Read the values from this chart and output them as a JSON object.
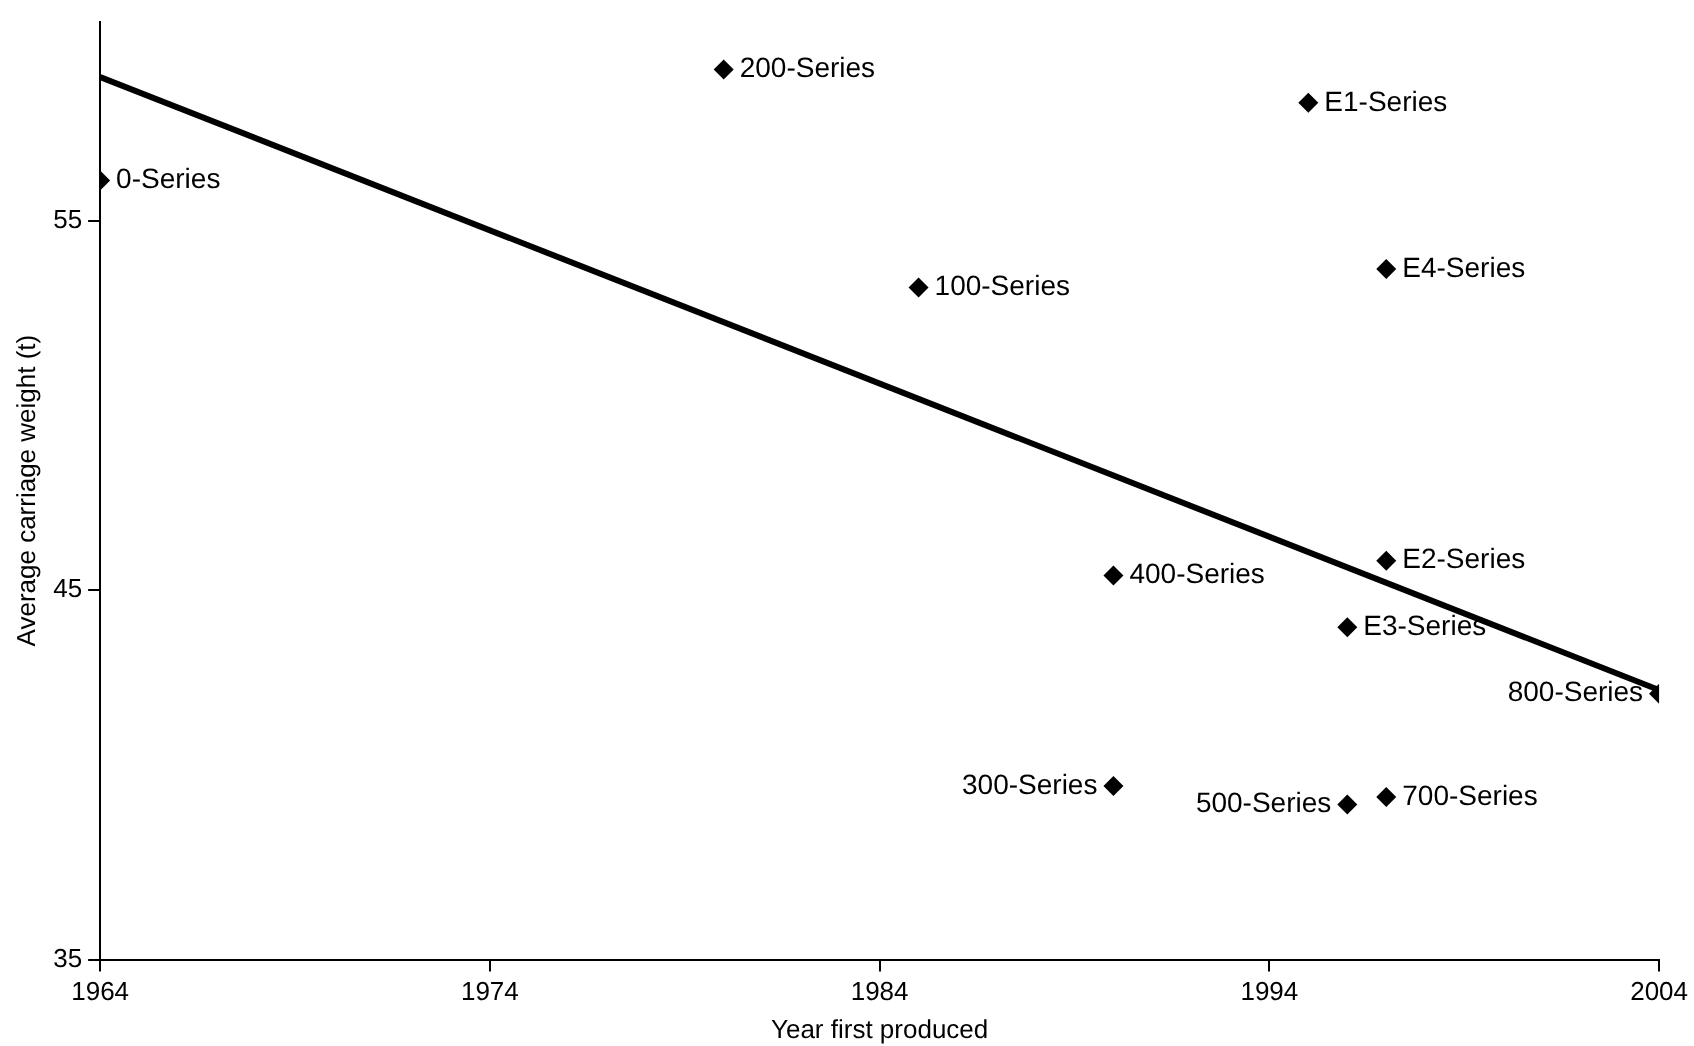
{
  "chart_data": {
    "type": "scatter",
    "xlabel": "Year first produced",
    "ylabel": "Average carriage weight (t)",
    "xlim": [
      1964,
      2004
    ],
    "xticks": [
      1964,
      1974,
      1984,
      1994,
      2004
    ],
    "ylim": [
      35,
      60.4
    ],
    "yticks": [
      35,
      45,
      55
    ],
    "grid": false,
    "legend": false,
    "marker": "diamond",
    "series": [
      {
        "name": "0-Series",
        "color": "#000000",
        "x": [
          1964
        ],
        "values": [
          56.1
        ]
      },
      {
        "name": "200-Series",
        "color": "#000000",
        "x": [
          1980
        ],
        "values": [
          59.1
        ]
      },
      {
        "name": "E1-Series",
        "color": "#000000",
        "x": [
          1995
        ],
        "values": [
          58.2
        ]
      },
      {
        "name": "100-Series",
        "color": "#000000",
        "x": [
          1985
        ],
        "values": [
          53.2
        ]
      },
      {
        "name": "E4-Series",
        "color": "#000000",
        "x": [
          1997
        ],
        "values": [
          53.7
        ]
      },
      {
        "name": "E2-Series",
        "color": "#000000",
        "x": [
          1997
        ],
        "values": [
          45.8
        ]
      },
      {
        "name": "400-Series",
        "color": "#000000",
        "x": [
          1990
        ],
        "values": [
          45.4
        ]
      },
      {
        "name": "E3-Series",
        "color": "#000000",
        "x": [
          1996
        ],
        "values": [
          44
        ]
      },
      {
        "name": "800-Series",
        "color": "#000000",
        "x": [
          2004
        ],
        "values": [
          42.2
        ]
      },
      {
        "name": "700-Series",
        "color": "#000000",
        "x": [
          1997
        ],
        "values": [
          39.4
        ]
      },
      {
        "name": "500-Series",
        "color": "#000000",
        "x": [
          1996
        ],
        "values": [
          39.2
        ]
      },
      {
        "name": "300-Series",
        "color": "#000000",
        "x": [
          1990
        ],
        "values": [
          39.7
        ]
      },
      {
        "type": "line",
        "color": "#000000",
        "x": [
          1964,
          2004
        ],
        "values": [
          58.9,
          42.3
        ],
        "marker": "none"
      }
    ]
  }
}
